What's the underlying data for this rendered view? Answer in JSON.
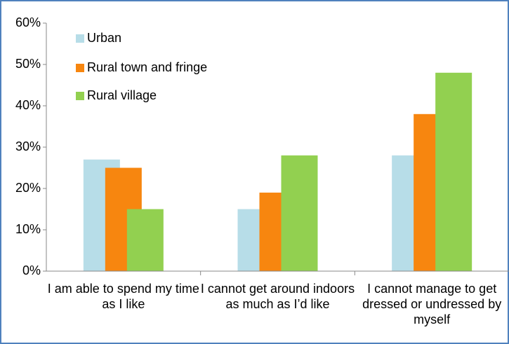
{
  "chart_data": {
    "type": "bar",
    "categories": [
      "I am able to spend my time as I like",
      "I cannot get around indoors as much as I’d like",
      "I cannot manage to get dressed or undressed by myself"
    ],
    "series": [
      {
        "name": "Urban",
        "color": "#b7dde8",
        "values": [
          27,
          15,
          28
        ]
      },
      {
        "name": "Rural town and fringe",
        "color": "#f7860f",
        "values": [
          25,
          19,
          38
        ]
      },
      {
        "name": "Rural village",
        "color": "#92d050",
        "values": [
          15,
          28,
          48
        ]
      }
    ],
    "ylim": [
      0,
      60
    ],
    "yticks": [
      {
        "value": 0,
        "label": "0%"
      },
      {
        "value": 10,
        "label": "10%"
      },
      {
        "value": 20,
        "label": "20%"
      },
      {
        "value": 30,
        "label": "30%"
      },
      {
        "value": 40,
        "label": "40%"
      },
      {
        "value": 50,
        "label": "50%"
      },
      {
        "value": 60,
        "label": "60%"
      }
    ],
    "legend": "top-left",
    "grid": false
  }
}
